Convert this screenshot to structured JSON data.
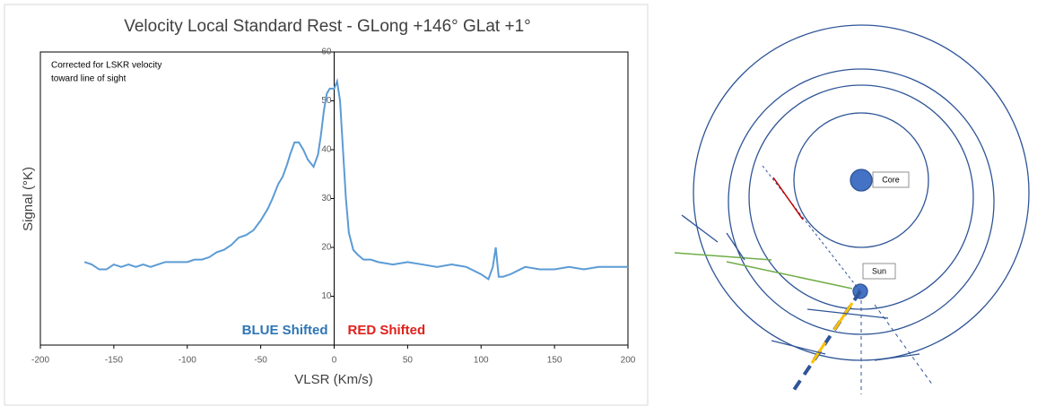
{
  "chart_data": {
    "type": "line",
    "title": "Velocity Local Standard Rest - GLong +146° GLat +1°",
    "x_label": "VLSR (Km/s)",
    "y_label": "Signal (°K)",
    "annotation": [
      "Corrected for LSKR velocity",
      "toward line of sight"
    ],
    "region_labels": [
      {
        "text": "BLUE Shifted",
        "color": "#2e75b6"
      },
      {
        "text": "RED Shifted",
        "color": "#e0201b"
      }
    ],
    "xlim": [
      -200,
      200
    ],
    "xticks": [
      -200,
      -150,
      -100,
      -50,
      0,
      50,
      100,
      150,
      200
    ],
    "ylim": [
      0,
      60
    ],
    "yticks": [
      10,
      20,
      30,
      40,
      50,
      60
    ],
    "series": [
      {
        "color": "#5b9bd5",
        "x": [
          -170,
          -165,
          -160,
          -155,
          -150,
          -145,
          -140,
          -135,
          -130,
          -125,
          -120,
          -115,
          -110,
          -105,
          -100,
          -95,
          -90,
          -85,
          -80,
          -75,
          -70,
          -65,
          -60,
          -55,
          -50,
          -45,
          -42,
          -38,
          -35,
          -32,
          -30,
          -27,
          -24,
          -21,
          -18,
          -14,
          -11,
          -9,
          -7,
          -5,
          -3,
          0,
          2,
          4,
          6,
          8,
          10,
          13,
          16,
          20,
          25,
          30,
          40,
          50,
          60,
          70,
          80,
          90,
          100,
          105,
          108,
          110,
          112,
          115,
          120,
          130,
          140,
          150,
          160,
          170,
          180,
          190,
          200
        ],
        "values": [
          17,
          16.5,
          15.5,
          15.5,
          16.5,
          16,
          16.5,
          16,
          16.5,
          16,
          16.5,
          17,
          17,
          17,
          17,
          17.5,
          17.5,
          18,
          19,
          19.5,
          20.5,
          22,
          22.5,
          23.5,
          25.5,
          28,
          30,
          33,
          34.5,
          37,
          39,
          41.5,
          41.5,
          40,
          38,
          36.5,
          39,
          43,
          48,
          51.5,
          52.5,
          52.5,
          54,
          50,
          40,
          30,
          23,
          19.5,
          18.5,
          17.5,
          17.5,
          17,
          16.5,
          17,
          16.5,
          16,
          16.5,
          16,
          14.5,
          13.5,
          16,
          20,
          14,
          14,
          14.5,
          16,
          15.5,
          15.5,
          16,
          15.5,
          16,
          16,
          16
        ]
      }
    ]
  },
  "diagram": {
    "core_label": "Core",
    "sun_label": "Sun"
  }
}
